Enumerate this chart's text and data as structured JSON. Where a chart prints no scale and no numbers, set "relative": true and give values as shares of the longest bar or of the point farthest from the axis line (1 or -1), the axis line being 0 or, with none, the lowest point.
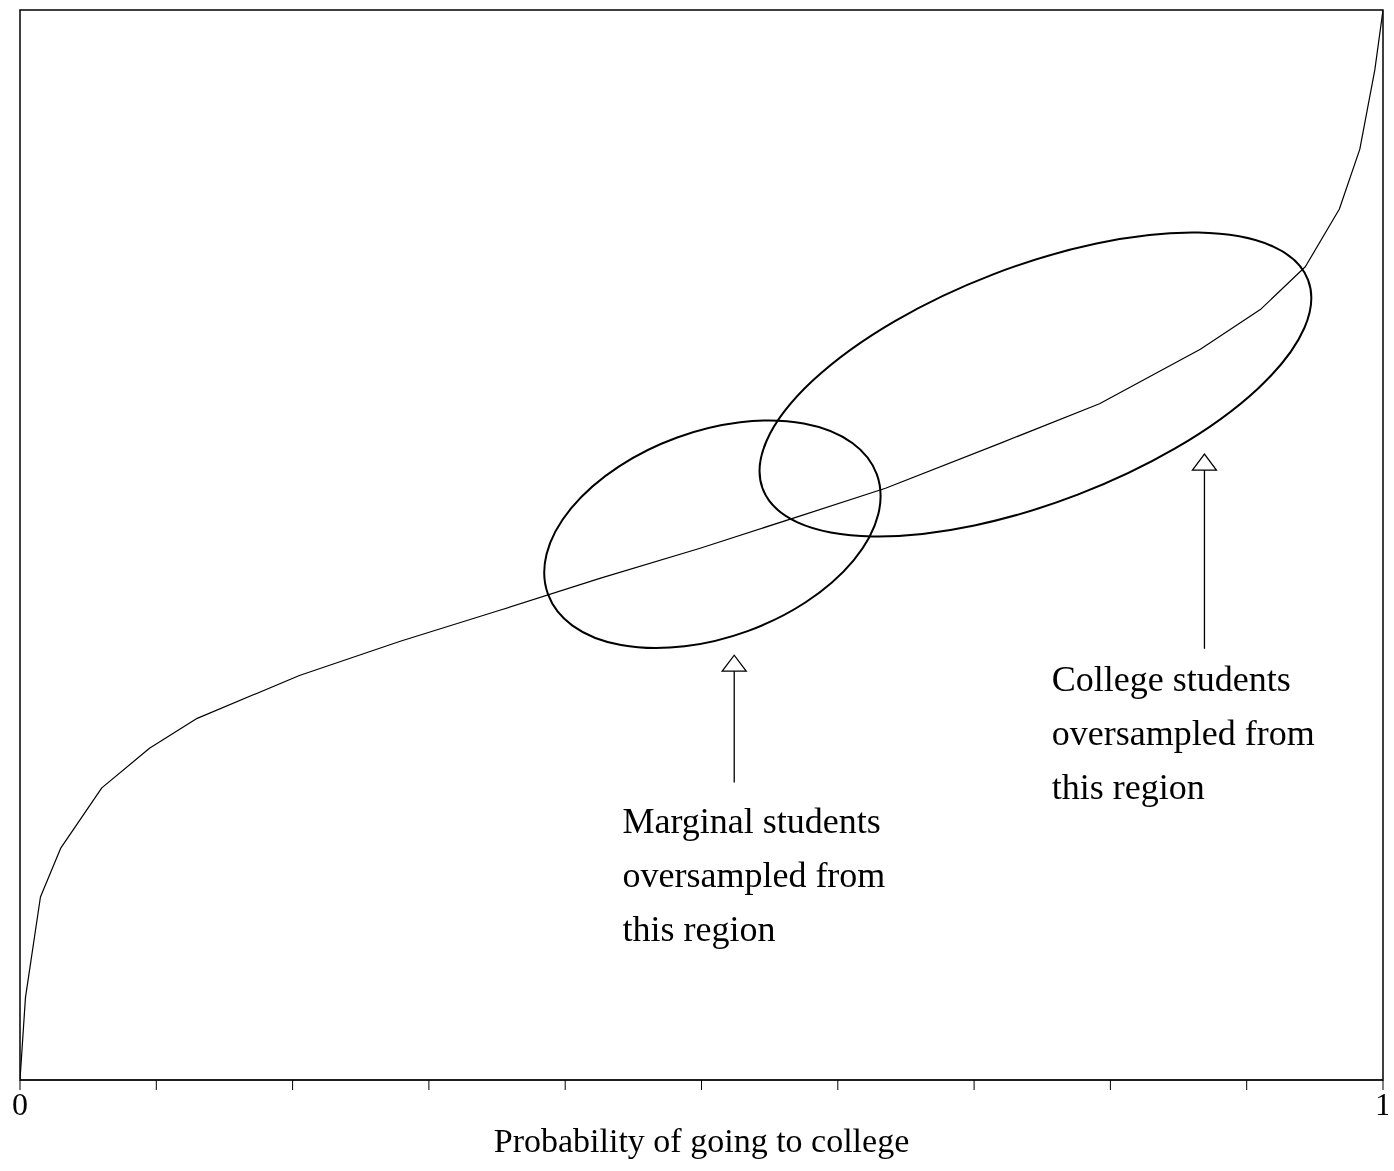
{
  "chart_data": {
    "type": "line",
    "relative": true,
    "xlabel": "Probability of going to college",
    "x": [
      0,
      0.004,
      0.015,
      0.03,
      0.06,
      0.095,
      0.13,
      0.205,
      0.279,
      0.352,
      0.426,
      0.499,
      0.572,
      0.635,
      0.719,
      0.792,
      0.866,
      0.91,
      0.943,
      0.968,
      0.983,
      0.994,
      1
    ],
    "series": [
      {
        "color": "#000000",
        "values": [
          0,
          0.077,
          0.171,
          0.217,
          0.273,
          0.31,
          0.338,
          0.378,
          0.41,
          0.439,
          0.469,
          0.497,
          0.527,
          0.553,
          0.595,
          0.632,
          0.683,
          0.72,
          0.76,
          0.814,
          0.87,
          0.944,
          1
        ]
      }
    ],
    "xlim": [
      0,
      1
    ],
    "xticks": [
      0,
      {
        "value": 0.1,
        "label": null
      },
      {
        "value": 0.2,
        "label": null
      },
      {
        "value": 0.3,
        "label": null
      },
      {
        "value": 0.4,
        "label": null
      },
      {
        "value": 0.5,
        "label": null
      },
      {
        "value": 0.6,
        "label": null
      },
      {
        "value": 0.7,
        "label": null
      },
      {
        "value": 0.8,
        "label": null
      },
      {
        "value": 0.9,
        "label": null
      },
      1
    ],
    "annotations": [
      "Marginal students\noversampled from\nthis region",
      "College students\noversampled from\nthis region"
    ],
    "marker": "none",
    "line_style": "solid"
  }
}
